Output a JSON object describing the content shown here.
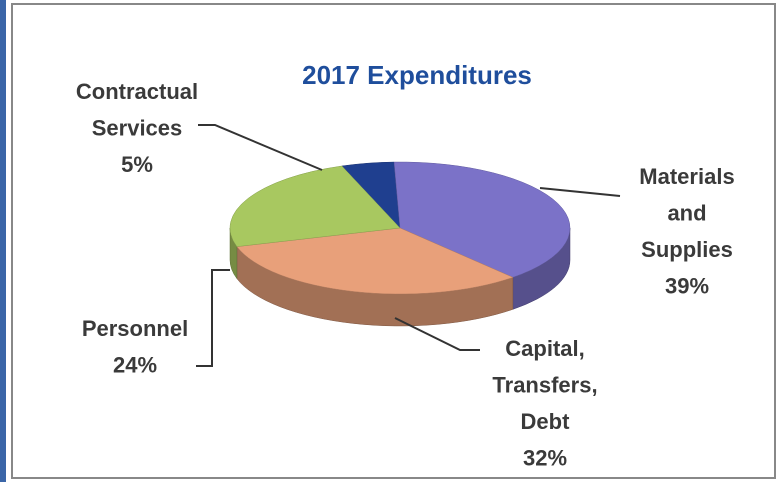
{
  "chart_data": {
    "type": "pie3d",
    "title": "2017 Expenditures",
    "categories": [
      "Contractual Services",
      "Materials and Supplies",
      "Capital, Transfers, Debt",
      "Personnel"
    ],
    "values": [
      5,
      39,
      32,
      24
    ],
    "value_labels": [
      "5%",
      "39%",
      "32%",
      "24%"
    ],
    "colors": [
      "#1f3f8f",
      "#7b72c8",
      "#e8a07a",
      "#a8c860"
    ]
  }
}
